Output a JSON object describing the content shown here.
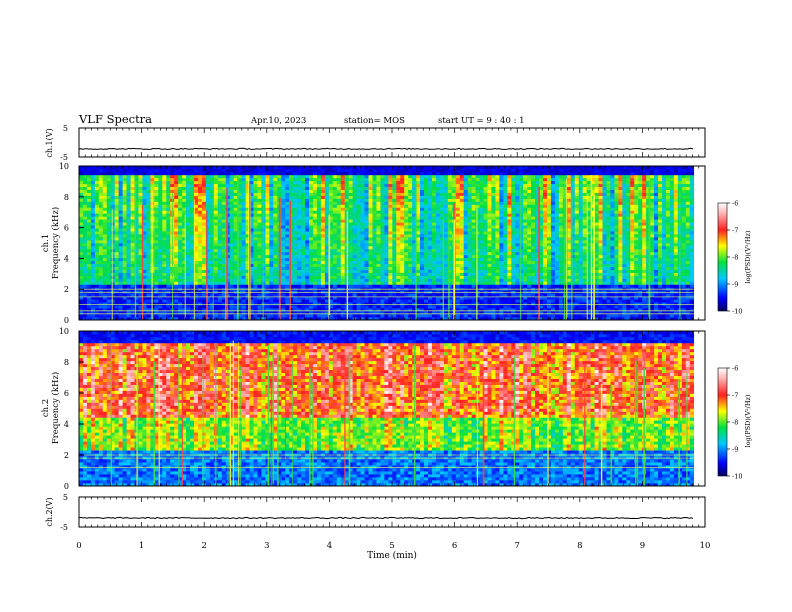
{
  "header": {
    "title": "VLF Spectra",
    "date": "Apr.10, 2023",
    "station": "station= MOS",
    "start": "start  UT  =   9  : 40 : 1"
  },
  "chart_data": [
    {
      "type": "line",
      "ylabel": "ch.1(V)",
      "ylim": [
        -5,
        5
      ],
      "yticks": [
        "5",
        "-5"
      ],
      "baseline": -2.2
    },
    {
      "type": "heatmap",
      "ylabel": "ch.1",
      "ylabel2": "Frequency (kHz)",
      "ylim": [
        0,
        10
      ],
      "yticks": [
        "0",
        "2",
        "4",
        "6",
        "8",
        "10"
      ],
      "colorbar": {
        "label": "log(PSD)(V²/Hz)",
        "ticks": [
          "-6",
          "-7",
          "-8",
          "-9",
          "-10"
        ],
        "range": [
          -10,
          -6
        ]
      },
      "persistent_lines_khz": [
        0.4,
        0.6,
        1.0,
        1.5,
        1.8,
        2.0
      ]
    },
    {
      "type": "heatmap",
      "ylabel": "ch.2",
      "ylabel2": "Frequency (kHz)",
      "ylim": [
        0,
        10
      ],
      "yticks": [
        "0",
        "2",
        "4",
        "6",
        "8",
        "10"
      ],
      "colorbar": {
        "label": "log(PSD)(V²/Hz)",
        "ticks": [
          "-6",
          "-7",
          "-8",
          "-9",
          "-10"
        ],
        "range": [
          -10,
          -6
        ]
      },
      "persistent_lines_khz": [
        1.2,
        1.8,
        2.0
      ]
    },
    {
      "type": "line",
      "ylabel": "ch.2(V)",
      "ylim": [
        -5,
        5
      ],
      "yticks": [
        "5",
        "-5"
      ],
      "baseline": -2.0
    }
  ],
  "xaxis": {
    "label": "Time  (min)",
    "ticks": [
      "0",
      "1",
      "2",
      "3",
      "4",
      "5",
      "6",
      "7",
      "8",
      "9",
      "10"
    ],
    "range": [
      0,
      10
    ],
    "data_end": 9.82
  }
}
